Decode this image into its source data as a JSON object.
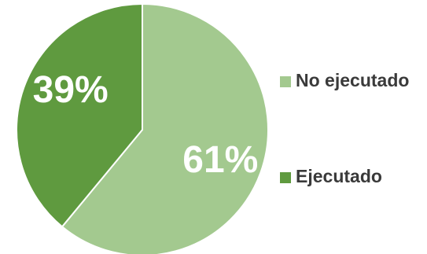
{
  "chart_data": {
    "type": "pie",
    "slices": [
      {
        "label": "No ejecutado",
        "value": 61,
        "value_label": "61%",
        "color": "#a3c98f"
      },
      {
        "label": "Ejecutado",
        "value": 39,
        "value_label": "39%",
        "color": "#5f9a3f"
      }
    ],
    "legend_position": "right",
    "title": ""
  }
}
